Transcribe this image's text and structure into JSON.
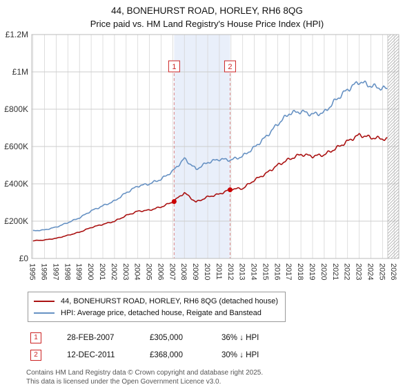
{
  "title": "44, BONEHURST ROAD, HORLEY, RH6 8QG",
  "subtitle": "Price paid vs. HM Land Registry's House Price Index (HPI)",
  "legend": {
    "property": "44, BONEHURST ROAD, HORLEY, RH6 8QG (detached house)",
    "hpi": "HPI: Average price, detached house, Reigate and Banstead"
  },
  "footer": {
    "line1": "Contains HM Land Registry data © Crown copyright and database right 2025.",
    "line2": "This data is licensed under the Open Government Licence v3.0."
  },
  "chart_data": {
    "type": "line",
    "title": "44, BONEHURST ROAD, HORLEY, RH6 8QG — Price paid vs. HPI",
    "xlabel": "",
    "ylabel": "",
    "xlim": [
      1994.9,
      2026.4
    ],
    "ylim": [
      0,
      1200000
    ],
    "grid": true,
    "legend_position": "below",
    "x_ticks": [
      1995,
      1996,
      1997,
      1998,
      1999,
      2000,
      2001,
      2002,
      2003,
      2004,
      2005,
      2006,
      2007,
      2008,
      2009,
      2010,
      2011,
      2012,
      2013,
      2014,
      2015,
      2016,
      2017,
      2018,
      2019,
      2020,
      2021,
      2022,
      2023,
      2024,
      2025,
      2026
    ],
    "y_ticks": [
      {
        "value": 0,
        "label": "£0"
      },
      {
        "value": 200000,
        "label": "£200K"
      },
      {
        "value": 400000,
        "label": "£400K"
      },
      {
        "value": 600000,
        "label": "£600K"
      },
      {
        "value": 800000,
        "label": "£800K"
      },
      {
        "value": 1000000,
        "label": "£1M"
      },
      {
        "value": 1200000,
        "label": "£1.2M"
      }
    ],
    "series": [
      {
        "name": "44, BONEHURST ROAD, HORLEY, RH6 8QG (detached house)",
        "color": "#aa1111",
        "x": [
          1995,
          1996,
          1997,
          1998,
          1999,
          2000,
          2001,
          2002,
          2003,
          2004,
          2005,
          2006,
          2007,
          2008,
          2009,
          2010,
          2011,
          2012,
          2013,
          2014,
          2015,
          2016,
          2017,
          2018,
          2019,
          2020,
          2021,
          2022,
          2023,
          2024,
          2025,
          2025.45
        ],
        "values": [
          95000,
          99000,
          108000,
          124000,
          141000,
          166000,
          183000,
          199000,
          230000,
          253000,
          259000,
          276000,
          303000,
          352000,
          302000,
          330000,
          345000,
          372000,
          375000,
          420000,
          455000,
          500000,
          532000,
          558000,
          548000,
          556000,
          590000,
          628000,
          662000,
          648000,
          642000,
          638000
        ]
      },
      {
        "name": "HPI: Average price, detached house, Reigate and Banstead",
        "color": "#6691c3",
        "x": [
          1995,
          1996,
          1997,
          1998,
          1999,
          2000,
          2001,
          2002,
          2003,
          2004,
          2005,
          2006,
          2007,
          2008,
          2009,
          2010,
          2011,
          2012,
          2013,
          2014,
          2015,
          2016,
          2017,
          2018,
          2019,
          2020,
          2021,
          2022,
          2023,
          2024,
          2025,
          2025.45
        ],
        "values": [
          148000,
          153000,
          168000,
          192000,
          218000,
          255000,
          282000,
          308000,
          352000,
          388000,
          400000,
          425000,
          468000,
          535000,
          478000,
          515000,
          532000,
          528000,
          548000,
          595000,
          652000,
          720000,
          778000,
          788000,
          772000,
          782000,
          850000,
          905000,
          948000,
          925000,
          912000,
          908000
        ]
      }
    ],
    "sales": [
      {
        "n": "1",
        "x": 2007.12,
        "y": 305000,
        "date": "28-FEB-2007",
        "price": "£305,000",
        "vs_hpi": "36% ↓ HPI"
      },
      {
        "n": "2",
        "x": 2011.92,
        "y": 368000,
        "date": "12-DEC-2011",
        "price": "£368,000",
        "vs_hpi": "30% ↓ HPI"
      }
    ],
    "shaded_region": [
      2007.12,
      2011.92
    ],
    "hatch_start": 2025.45,
    "colors": {
      "shade": "#e9effa",
      "dashed_line": "#dd8888",
      "grid": "#d6d6d6",
      "marker": "#cc0000",
      "marker_box_border": "#cc2222"
    }
  }
}
